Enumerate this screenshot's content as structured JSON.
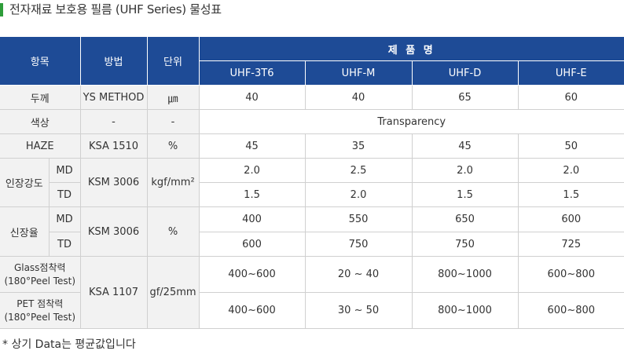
{
  "title": "전자재료 보호용 필름 (UHF Series) 물성표",
  "colors": {
    "header_bg": "#1e4b96",
    "accent": "#2e9d3a",
    "label_bg": "#f2f2f2",
    "border": "#d0d0d0"
  },
  "table": {
    "headers": {
      "item": "항목",
      "method": "방법",
      "unit": "단위",
      "product": "제 품 명",
      "models": [
        "UHF-3T6",
        "UHF-M",
        "UHF-D",
        "UHF-E"
      ]
    },
    "rows": {
      "thickness": {
        "label": "두께",
        "method": "YS METHOD",
        "unit": "㎛",
        "values": [
          "40",
          "40",
          "65",
          "60"
        ]
      },
      "color": {
        "label": "색상",
        "method": "-",
        "unit": "-",
        "value": "Transparency"
      },
      "haze": {
        "label": "HAZE",
        "method": "KSA 1510",
        "unit": "%",
        "values": [
          "45",
          "35",
          "45",
          "50"
        ]
      },
      "tensile": {
        "label": "인장강도",
        "method": "KSM 3006",
        "unit": "kgf/mm²",
        "md": {
          "label": "MD",
          "values": [
            "2.0",
            "2.5",
            "2.0",
            "2.0"
          ]
        },
        "td": {
          "label": "TD",
          "values": [
            "1.5",
            "2.0",
            "1.5",
            "1.5"
          ]
        }
      },
      "elongation": {
        "label": "신장율",
        "method": "KSM 3006",
        "unit": "%",
        "md": {
          "label": "MD",
          "values": [
            "400",
            "550",
            "650",
            "600"
          ]
        },
        "td": {
          "label": "TD",
          "values": [
            "600",
            "750",
            "750",
            "725"
          ]
        }
      },
      "adhesion": {
        "method": "KSA 1107",
        "unit": "gf/25mm",
        "glass": {
          "label_line1": "Glass점착력",
          "label_line2": "(180°Peel Test)",
          "values": [
            "400~600",
            "20 ~ 40",
            "800~1000",
            "600~800"
          ]
        },
        "pet": {
          "label_line1": "PET 점착력",
          "label_line2": "(180°Peel Test)",
          "values": [
            "400~600",
            "30 ~ 50",
            "800~1000",
            "600~800"
          ]
        }
      }
    }
  },
  "footnote": "* 상기 Data는 평균값입니다"
}
